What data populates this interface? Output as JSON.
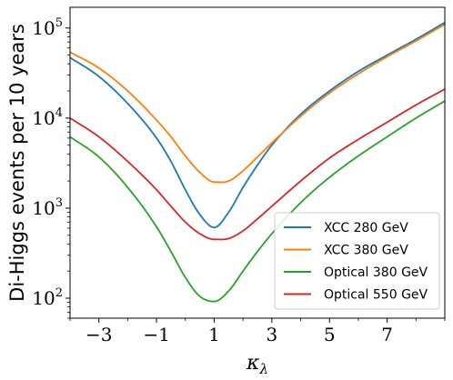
{
  "chart_data": {
    "type": "line",
    "xlabel": "κ_λ",
    "ylabel": "Di-Higgs events per 10 years",
    "xlim": [
      -4,
      9
    ],
    "ylim": [
      60,
      170000
    ],
    "yscale": "log",
    "xticks": [
      -3,
      -1,
      1,
      3,
      5,
      7
    ],
    "xtick_labels": [
      "−3",
      "−1",
      "1",
      "3",
      "5",
      "7"
    ],
    "yticks": [
      100,
      1000,
      10000,
      100000
    ],
    "ytick_labels": [
      {
        "base": "10",
        "exp": "2"
      },
      {
        "base": "10",
        "exp": "3"
      },
      {
        "base": "10",
        "exp": "4"
      },
      {
        "base": "10",
        "exp": "5"
      }
    ],
    "grid": false,
    "legend_position": "lower-right",
    "series": [
      {
        "name": "XCC 280 GeV",
        "color": "#1f77b4",
        "x": [
          -4,
          -3,
          -2,
          -1,
          -0.5,
          0,
          0.5,
          1,
          1.5,
          2,
          2.5,
          3,
          4,
          5,
          6,
          7,
          8,
          9
        ],
        "y": [
          47000,
          29000,
          14500,
          6000,
          3300,
          1600,
          850,
          610,
          900,
          1700,
          3000,
          5000,
          11000,
          20000,
          33000,
          50000,
          75000,
          115000
        ]
      },
      {
        "name": "XCC 380 GeV",
        "color": "#ff7f0e",
        "x": [
          -4,
          -3,
          -2,
          -1,
          -0.5,
          0,
          0.5,
          1,
          1.5,
          2,
          2.5,
          3,
          4,
          5,
          6,
          7,
          8,
          9
        ],
        "y": [
          54000,
          36000,
          20000,
          9500,
          6200,
          3800,
          2500,
          1950,
          2000,
          2600,
          3700,
          5300,
          10500,
          19000,
          31000,
          48000,
          72000,
          110000
        ]
      },
      {
        "name": "Optical 380 GeV",
        "color": "#2ca02c",
        "x": [
          -4,
          -3,
          -2,
          -1,
          -0.5,
          0,
          0.5,
          1,
          1.5,
          2,
          2.5,
          3,
          4,
          5,
          6,
          7,
          8,
          9
        ],
        "y": [
          6200,
          3700,
          1700,
          620,
          330,
          170,
          105,
          92,
          120,
          200,
          330,
          520,
          1150,
          2200,
          3800,
          6200,
          10000,
          15500
        ]
      },
      {
        "name": "Optical 550 GeV",
        "color": "#d62728",
        "x": [
          -4,
          -3,
          -2,
          -1,
          -0.5,
          0,
          0.5,
          1,
          1.5,
          2,
          2.5,
          3,
          4,
          5,
          6,
          7,
          8,
          9
        ],
        "y": [
          10000,
          6200,
          3300,
          1600,
          1050,
          700,
          520,
          450,
          460,
          560,
          760,
          1050,
          2000,
          3600,
          5800,
          9000,
          14000,
          21000
        ]
      }
    ]
  }
}
